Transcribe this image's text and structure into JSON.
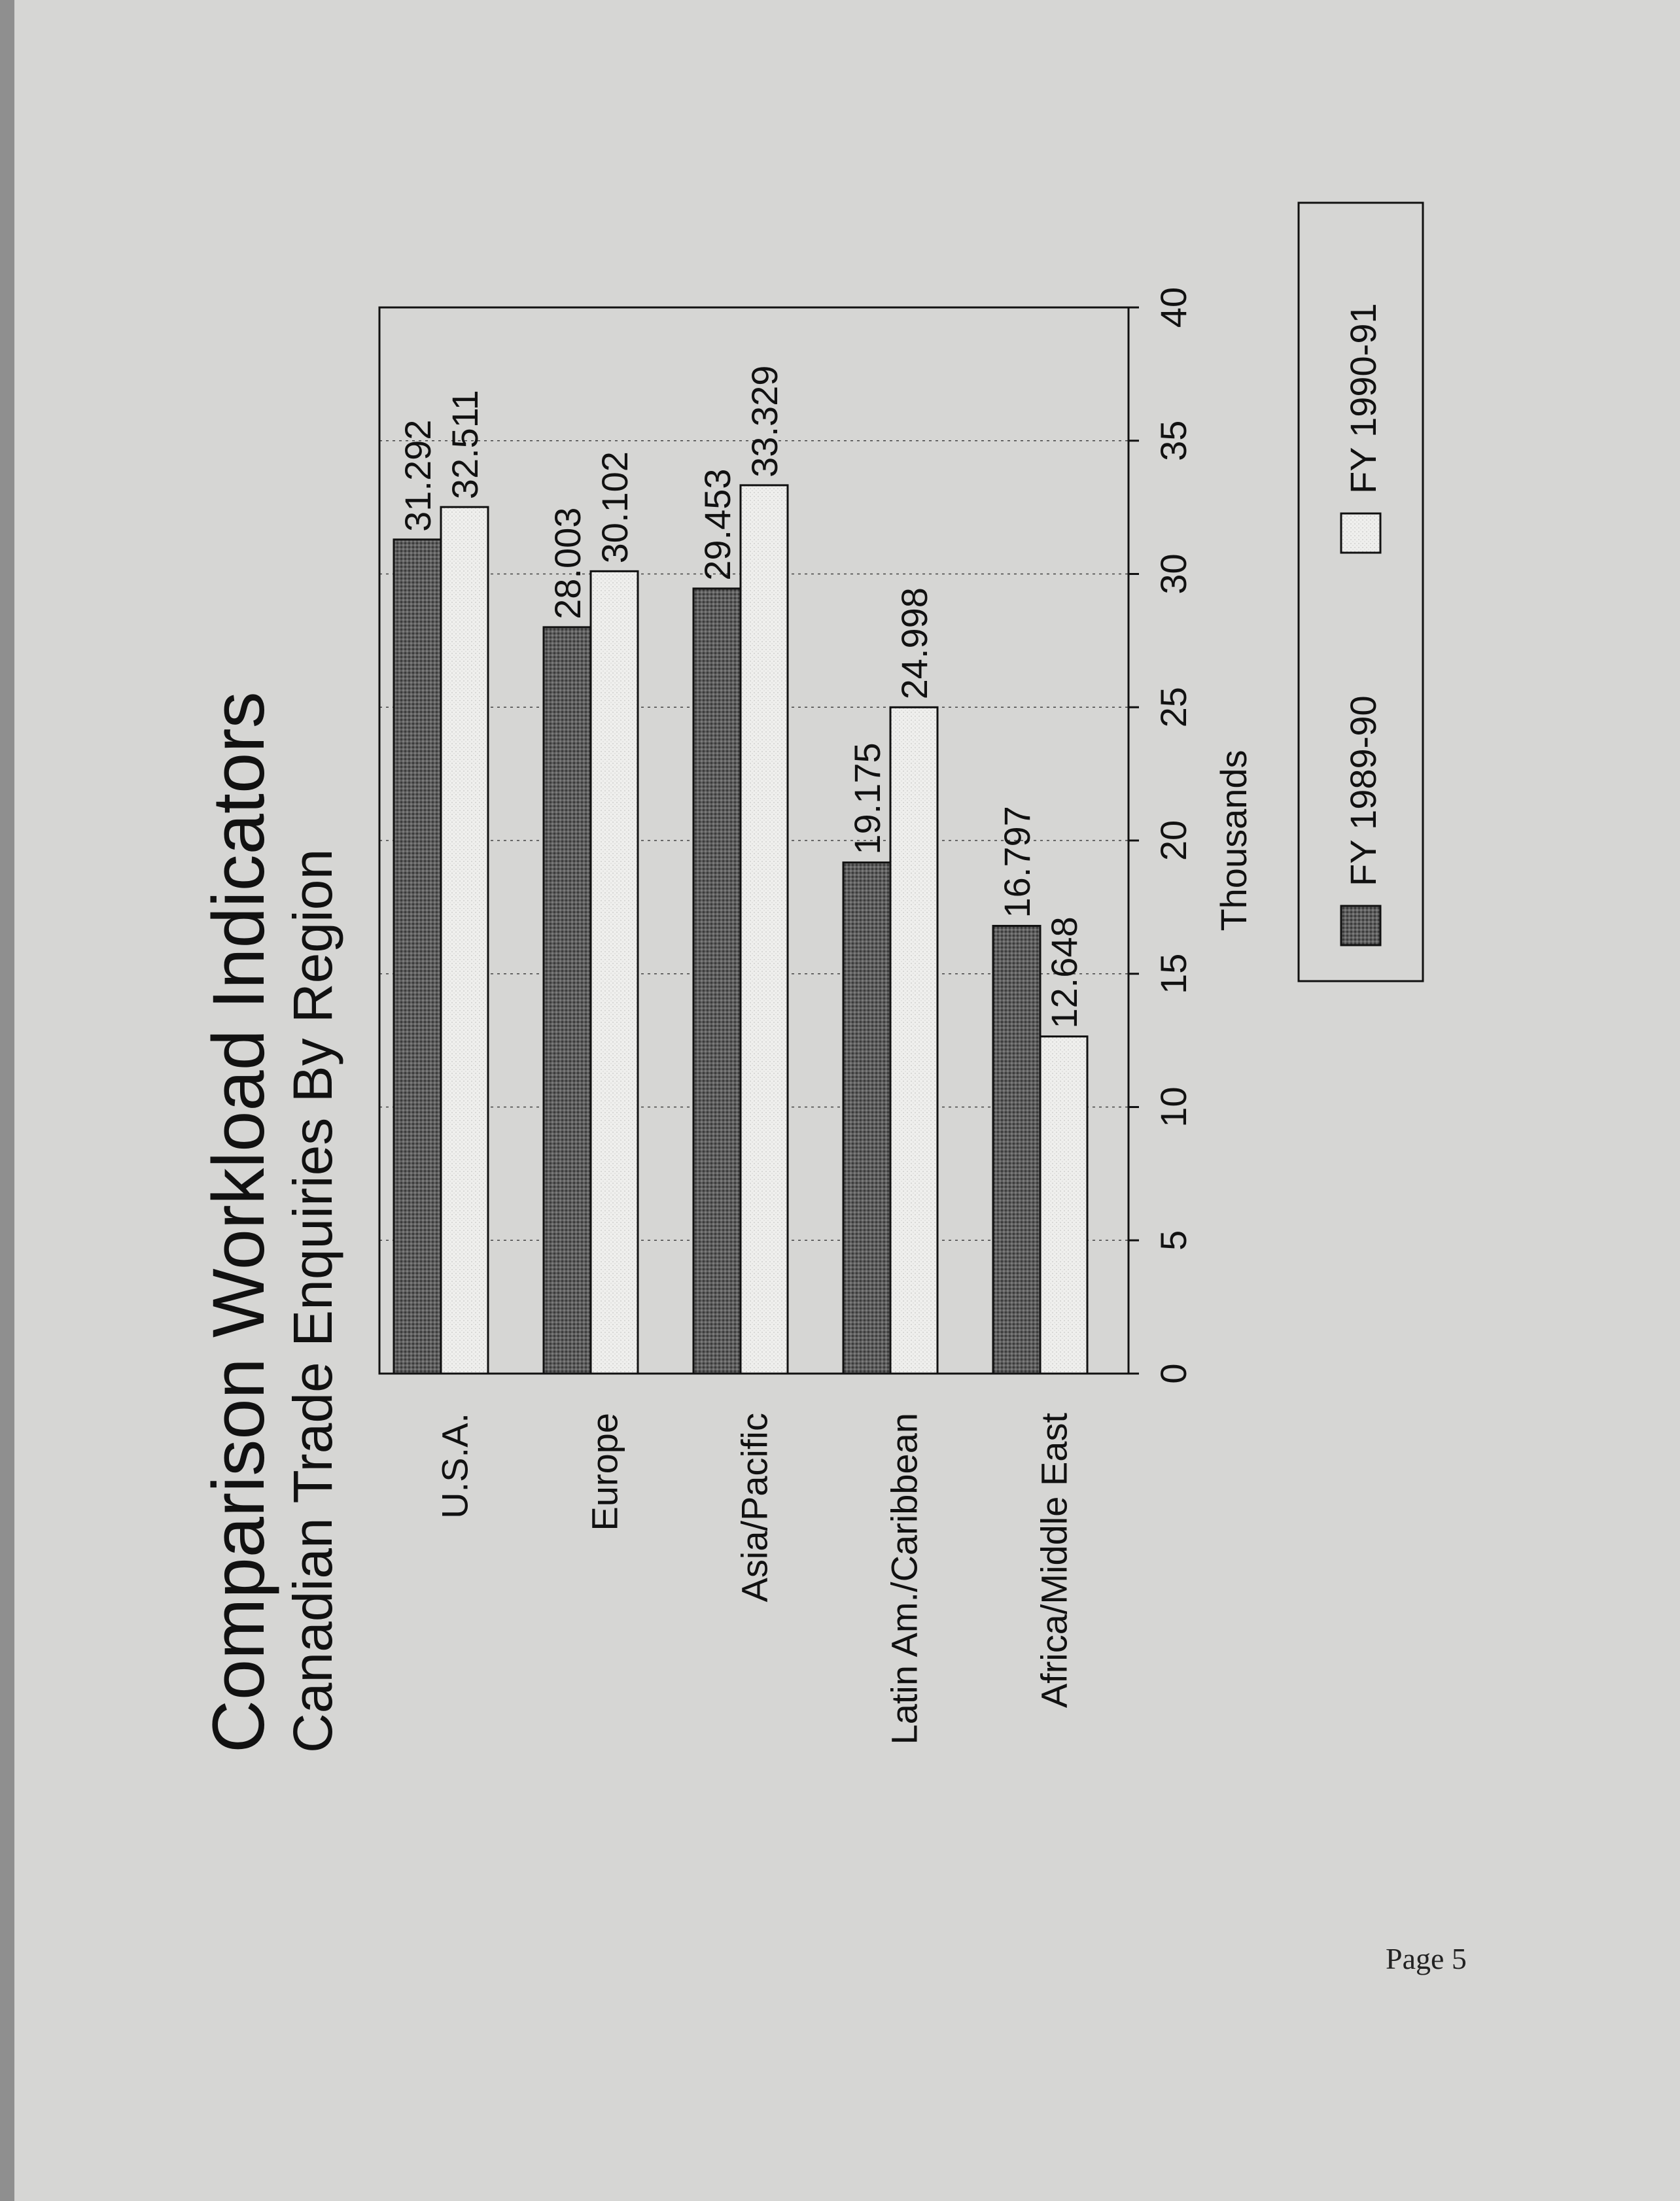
{
  "page": {
    "number_label": "Page 5"
  },
  "chart_data": {
    "type": "bar",
    "orientation": "horizontal",
    "title": "Comparison Workload Indicators",
    "subtitle": "Canadian Trade Enquiries By Region",
    "xlabel": "Thousands",
    "xlim": [
      0,
      40
    ],
    "xticks": [
      0,
      5,
      10,
      15,
      20,
      25,
      30,
      35,
      40
    ],
    "grid": true,
    "legend_placement": "bottom",
    "categories": [
      "U.S.A.",
      "Europe",
      "Asia/Pacific",
      "Latin Am./Caribbean",
      "Africa/Middle East"
    ],
    "series": [
      {
        "name": "FY 1989-90",
        "values": [
          31.292,
          28.003,
          29.453,
          19.175,
          16.797
        ],
        "value_labels": [
          "31.292",
          "28.003",
          "29.453",
          "19.175",
          "16.797"
        ],
        "color": "#5a5a5a"
      },
      {
        "name": "FY 1990-91",
        "values": [
          32.511,
          30.102,
          33.329,
          24.998,
          12.648
        ],
        "value_labels": [
          "32.511",
          "30.102",
          "33.329",
          "24.998",
          "12.648"
        ],
        "color": "#efefed"
      }
    ]
  }
}
